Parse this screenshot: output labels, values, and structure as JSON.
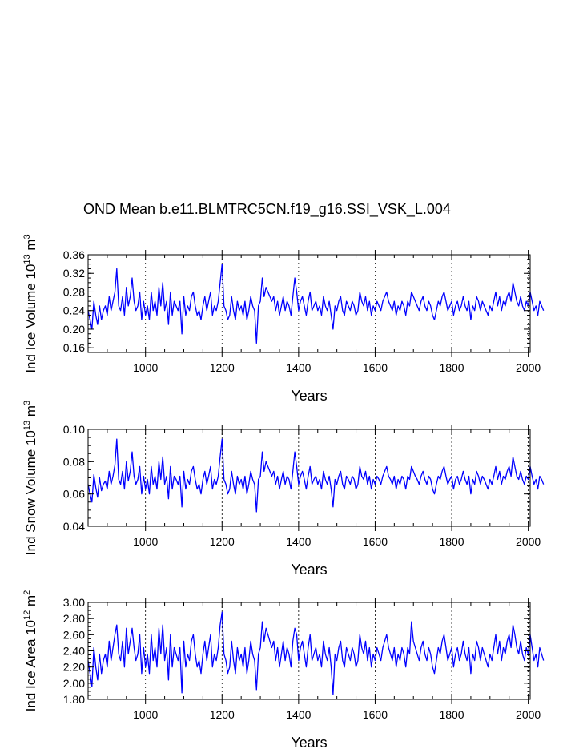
{
  "title": "OND Mean b.e11.BLMTRC5CN.f19_g16.SSI_VSK_L.004",
  "colors": {
    "series": "#0000ff",
    "axis": "#000000",
    "grid": "#000000"
  },
  "chart_data": [
    {
      "type": "line",
      "ylabel_main": "Ind Ice Volume 10",
      "ylabel_exp": "13",
      "ylabel_unit": " m",
      "ylabel_unit_exp": "3",
      "xlabel": "Years",
      "xlim": [
        850,
        2005
      ],
      "ylim": [
        0.15,
        0.36
      ],
      "xticks": [
        1000,
        1200,
        1400,
        1600,
        1800,
        2000
      ],
      "yticks": [
        0.16,
        0.2,
        0.24,
        0.28,
        0.32,
        0.36
      ],
      "ytick_labels": [
        "0.16",
        "0.20",
        "0.24",
        "0.28",
        "0.32",
        "0.36"
      ],
      "grid": "dashed vertical",
      "series": [
        {
          "name": "Ind Ice Volume",
          "x_start": 850,
          "x_step": 5,
          "values": [
            0.24,
            0.22,
            0.2,
            0.26,
            0.23,
            0.21,
            0.25,
            0.22,
            0.24,
            0.25,
            0.23,
            0.27,
            0.24,
            0.26,
            0.28,
            0.33,
            0.25,
            0.24,
            0.27,
            0.23,
            0.29,
            0.25,
            0.27,
            0.31,
            0.26,
            0.24,
            0.25,
            0.28,
            0.22,
            0.26,
            0.23,
            0.25,
            0.22,
            0.28,
            0.24,
            0.26,
            0.23,
            0.29,
            0.25,
            0.3,
            0.24,
            0.26,
            0.21,
            0.28,
            0.23,
            0.26,
            0.25,
            0.24,
            0.26,
            0.19,
            0.27,
            0.23,
            0.25,
            0.24,
            0.27,
            0.28,
            0.25,
            0.23,
            0.24,
            0.22,
            0.25,
            0.27,
            0.24,
            0.26,
            0.28,
            0.23,
            0.25,
            0.24,
            0.26,
            0.3,
            0.34,
            0.25,
            0.24,
            0.22,
            0.23,
            0.27,
            0.24,
            0.22,
            0.26,
            0.24,
            0.25,
            0.23,
            0.26,
            0.22,
            0.24,
            0.27,
            0.25,
            0.24,
            0.17,
            0.25,
            0.26,
            0.31,
            0.27,
            0.29,
            0.28,
            0.27,
            0.26,
            0.27,
            0.24,
            0.26,
            0.23,
            0.25,
            0.27,
            0.24,
            0.26,
            0.25,
            0.23,
            0.27,
            0.31,
            0.28,
            0.24,
            0.26,
            0.27,
            0.25,
            0.23,
            0.26,
            0.28,
            0.24,
            0.25,
            0.26,
            0.24,
            0.25,
            0.23,
            0.27,
            0.25,
            0.24,
            0.26,
            0.23,
            0.2,
            0.25,
            0.24,
            0.26,
            0.27,
            0.24,
            0.23,
            0.26,
            0.25,
            0.24,
            0.26,
            0.25,
            0.23,
            0.24,
            0.28,
            0.26,
            0.25,
            0.27,
            0.24,
            0.26,
            0.23,
            0.25,
            0.24,
            0.26,
            0.25,
            0.24,
            0.26,
            0.27,
            0.28,
            0.26,
            0.25,
            0.24,
            0.26,
            0.23,
            0.25,
            0.24,
            0.26,
            0.25,
            0.23,
            0.26,
            0.25,
            0.28,
            0.27,
            0.26,
            0.25,
            0.24,
            0.26,
            0.27,
            0.25,
            0.24,
            0.26,
            0.25,
            0.23,
            0.22,
            0.24,
            0.26,
            0.25,
            0.27,
            0.28,
            0.26,
            0.24,
            0.25,
            0.26,
            0.23,
            0.25,
            0.26,
            0.24,
            0.25,
            0.27,
            0.25,
            0.24,
            0.26,
            0.22,
            0.25,
            0.24,
            0.27,
            0.26,
            0.24,
            0.26,
            0.25,
            0.24,
            0.23,
            0.25,
            0.24,
            0.26,
            0.28,
            0.25,
            0.27,
            0.24,
            0.26,
            0.25,
            0.27,
            0.28,
            0.26,
            0.3,
            0.28,
            0.26,
            0.25,
            0.27,
            0.25,
            0.24,
            0.26,
            0.25,
            0.28,
            0.26,
            0.24,
            0.25,
            0.23,
            0.26,
            0.25,
            0.24
          ]
        }
      ]
    },
    {
      "type": "line",
      "ylabel_main": "Ind Snow Volume 10",
      "ylabel_exp": "13",
      "ylabel_unit": " m",
      "ylabel_unit_exp": "3",
      "xlabel": "Years",
      "xlim": [
        850,
        2005
      ],
      "ylim": [
        0.04,
        0.1
      ],
      "xticks": [
        1000,
        1200,
        1400,
        1600,
        1800,
        2000
      ],
      "yticks": [
        0.04,
        0.06,
        0.08,
        0.1
      ],
      "ytick_labels": [
        "0.04",
        "0.06",
        "0.08",
        "0.10"
      ],
      "grid": "dashed vertical",
      "series": [
        {
          "name": "Ind Snow Volume",
          "x_start": 850,
          "x_step": 5,
          "values": [
            0.066,
            0.06,
            0.055,
            0.072,
            0.064,
            0.058,
            0.07,
            0.062,
            0.066,
            0.068,
            0.063,
            0.074,
            0.066,
            0.071,
            0.078,
            0.094,
            0.069,
            0.066,
            0.074,
            0.063,
            0.08,
            0.068,
            0.074,
            0.086,
            0.071,
            0.066,
            0.069,
            0.077,
            0.06,
            0.071,
            0.063,
            0.069,
            0.06,
            0.077,
            0.066,
            0.071,
            0.063,
            0.08,
            0.069,
            0.083,
            0.066,
            0.071,
            0.057,
            0.077,
            0.063,
            0.071,
            0.069,
            0.066,
            0.071,
            0.052,
            0.074,
            0.063,
            0.069,
            0.066,
            0.074,
            0.077,
            0.069,
            0.063,
            0.066,
            0.06,
            0.069,
            0.074,
            0.066,
            0.071,
            0.077,
            0.063,
            0.069,
            0.066,
            0.071,
            0.083,
            0.094,
            0.069,
            0.066,
            0.06,
            0.063,
            0.074,
            0.066,
            0.06,
            0.071,
            0.066,
            0.069,
            0.063,
            0.071,
            0.06,
            0.066,
            0.074,
            0.069,
            0.066,
            0.049,
            0.069,
            0.071,
            0.086,
            0.074,
            0.08,
            0.077,
            0.074,
            0.071,
            0.074,
            0.066,
            0.071,
            0.063,
            0.069,
            0.074,
            0.066,
            0.071,
            0.069,
            0.063,
            0.074,
            0.086,
            0.077,
            0.066,
            0.071,
            0.074,
            0.069,
            0.063,
            0.071,
            0.077,
            0.066,
            0.069,
            0.071,
            0.066,
            0.069,
            0.063,
            0.074,
            0.069,
            0.066,
            0.071,
            0.063,
            0.052,
            0.069,
            0.066,
            0.071,
            0.074,
            0.066,
            0.063,
            0.071,
            0.069,
            0.066,
            0.071,
            0.069,
            0.063,
            0.066,
            0.077,
            0.071,
            0.069,
            0.074,
            0.066,
            0.071,
            0.063,
            0.069,
            0.066,
            0.071,
            0.069,
            0.066,
            0.071,
            0.074,
            0.077,
            0.071,
            0.069,
            0.066,
            0.071,
            0.063,
            0.069,
            0.066,
            0.071,
            0.069,
            0.063,
            0.071,
            0.069,
            0.077,
            0.074,
            0.071,
            0.069,
            0.066,
            0.071,
            0.074,
            0.069,
            0.066,
            0.071,
            0.069,
            0.063,
            0.06,
            0.066,
            0.071,
            0.069,
            0.074,
            0.077,
            0.071,
            0.066,
            0.069,
            0.071,
            0.063,
            0.069,
            0.071,
            0.066,
            0.069,
            0.074,
            0.069,
            0.066,
            0.071,
            0.06,
            0.069,
            0.066,
            0.074,
            0.071,
            0.066,
            0.071,
            0.069,
            0.066,
            0.063,
            0.069,
            0.066,
            0.071,
            0.077,
            0.069,
            0.074,
            0.066,
            0.071,
            0.069,
            0.074,
            0.077,
            0.071,
            0.083,
            0.077,
            0.071,
            0.069,
            0.074,
            0.069,
            0.066,
            0.071,
            0.069,
            0.077,
            0.071,
            0.066,
            0.069,
            0.063,
            0.071,
            0.069,
            0.066
          ]
        }
      ]
    },
    {
      "type": "line",
      "ylabel_main": "Ind Ice Area 10",
      "ylabel_exp": "12",
      "ylabel_unit": " m",
      "ylabel_unit_exp": "2",
      "xlabel": "Years",
      "xlim": [
        850,
        2005
      ],
      "ylim": [
        1.8,
        3.0
      ],
      "xticks": [
        1000,
        1200,
        1400,
        1600,
        1800,
        2000
      ],
      "yticks": [
        1.8,
        2.0,
        2.2,
        2.4,
        2.6,
        2.8,
        3.0
      ],
      "ytick_labels": [
        "1.80",
        "2.00",
        "2.20",
        "2.40",
        "2.60",
        "2.80",
        "3.00"
      ],
      "grid": "dashed vertical",
      "series": [
        {
          "name": "Ind Ice Area",
          "x_start": 850,
          "x_step": 5,
          "values": [
            2.28,
            2.12,
            1.96,
            2.44,
            2.2,
            2.04,
            2.36,
            2.12,
            2.28,
            2.36,
            2.2,
            2.52,
            2.28,
            2.44,
            2.6,
            2.72,
            2.36,
            2.28,
            2.52,
            2.2,
            2.68,
            2.36,
            2.52,
            2.68,
            2.44,
            2.28,
            2.36,
            2.6,
            2.12,
            2.44,
            2.2,
            2.36,
            2.12,
            2.6,
            2.28,
            2.44,
            2.2,
            2.68,
            2.36,
            2.72,
            2.28,
            2.44,
            2.04,
            2.6,
            2.2,
            2.44,
            2.36,
            2.28,
            2.44,
            1.88,
            2.52,
            2.2,
            2.36,
            2.28,
            2.52,
            2.6,
            2.36,
            2.2,
            2.28,
            2.12,
            2.36,
            2.52,
            2.28,
            2.44,
            2.6,
            2.2,
            2.36,
            2.28,
            2.44,
            2.72,
            2.88,
            2.36,
            2.28,
            2.12,
            2.2,
            2.52,
            2.28,
            2.12,
            2.44,
            2.28,
            2.36,
            2.2,
            2.44,
            2.12,
            2.28,
            2.52,
            2.36,
            2.28,
            1.92,
            2.36,
            2.44,
            2.76,
            2.52,
            2.68,
            2.6,
            2.52,
            2.44,
            2.52,
            2.28,
            2.44,
            2.2,
            2.36,
            2.52,
            2.28,
            2.44,
            2.36,
            2.2,
            2.52,
            2.68,
            2.6,
            2.28,
            2.44,
            2.52,
            2.36,
            2.2,
            2.44,
            2.6,
            2.28,
            2.36,
            2.44,
            2.28,
            2.36,
            2.2,
            2.52,
            2.36,
            2.28,
            2.44,
            2.2,
            1.86,
            2.36,
            2.28,
            2.44,
            2.52,
            2.28,
            2.2,
            2.44,
            2.36,
            2.28,
            2.44,
            2.36,
            2.2,
            2.28,
            2.6,
            2.44,
            2.36,
            2.52,
            2.28,
            2.44,
            2.2,
            2.36,
            2.28,
            2.44,
            2.36,
            2.28,
            2.44,
            2.52,
            2.6,
            2.44,
            2.36,
            2.28,
            2.44,
            2.2,
            2.36,
            2.28,
            2.44,
            2.36,
            2.2,
            2.44,
            2.36,
            2.76,
            2.52,
            2.44,
            2.36,
            2.28,
            2.44,
            2.52,
            2.36,
            2.28,
            2.44,
            2.36,
            2.2,
            2.12,
            2.28,
            2.44,
            2.36,
            2.52,
            2.6,
            2.44,
            2.28,
            2.36,
            2.44,
            2.2,
            2.36,
            2.44,
            2.28,
            2.36,
            2.52,
            2.36,
            2.28,
            2.44,
            2.12,
            2.36,
            2.28,
            2.52,
            2.44,
            2.28,
            2.44,
            2.36,
            2.28,
            2.2,
            2.36,
            2.28,
            2.44,
            2.6,
            2.36,
            2.52,
            2.28,
            2.44,
            2.36,
            2.52,
            2.6,
            2.44,
            2.72,
            2.6,
            2.44,
            2.36,
            2.52,
            2.36,
            2.28,
            2.44,
            2.36,
            2.6,
            2.44,
            2.28,
            2.36,
            2.2,
            2.44,
            2.36,
            2.28
          ]
        }
      ]
    }
  ]
}
